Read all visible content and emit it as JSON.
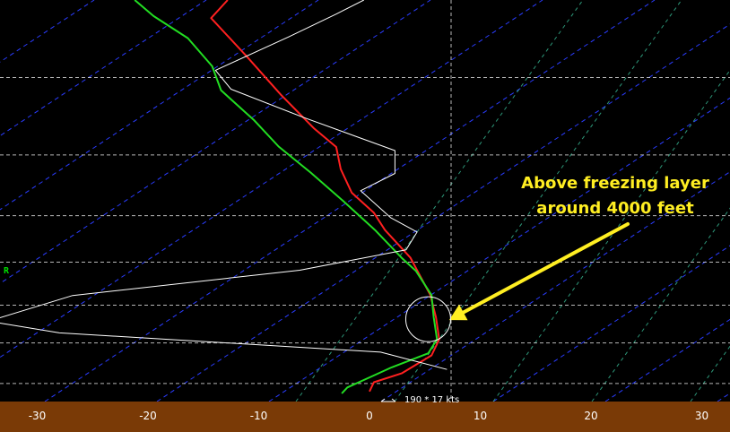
{
  "chart_data": {
    "type": "line",
    "title": "",
    "xlabel": "",
    "ylabel": "",
    "xlim": [
      -34.5,
      32.5
    ],
    "x_ticks": [
      -30,
      -20,
      -10,
      0,
      10,
      20,
      30
    ],
    "x_tick_labels": [
      "-30",
      "-20",
      "-10",
      "0",
      "10",
      "20",
      "30"
    ],
    "grid": true,
    "level_marker": "R",
    "series": [
      {
        "color": "#ff2020",
        "points": [
          [
            -12.8,
            1.0
          ],
          [
            -14.3,
            0.955
          ],
          [
            -11.1,
            0.86
          ],
          [
            -8.0,
            0.764
          ],
          [
            -5.0,
            0.68
          ],
          [
            -3.0,
            0.634
          ],
          [
            -2.6,
            0.579
          ],
          [
            -1.6,
            0.52
          ],
          [
            0.4,
            0.47
          ],
          [
            1.4,
            0.427
          ],
          [
            3.7,
            0.358
          ],
          [
            5.5,
            0.265
          ],
          [
            6.0,
            0.21
          ],
          [
            6.3,
            0.155
          ],
          [
            5.6,
            0.115
          ],
          [
            2.9,
            0.07
          ],
          [
            0.4,
            0.048
          ],
          [
            0.0,
            0.025
          ]
        ]
      },
      {
        "color": "#22dd22",
        "points": [
          [
            -21.2,
            1.0
          ],
          [
            -19.5,
            0.96
          ],
          [
            -16.4,
            0.905
          ],
          [
            -14.2,
            0.835
          ],
          [
            -13.4,
            0.775
          ],
          [
            -10.4,
            0.7
          ],
          [
            -8.2,
            0.635
          ],
          [
            -5.3,
            0.57
          ],
          [
            -2.4,
            0.5
          ],
          [
            0.5,
            0.427
          ],
          [
            2.9,
            0.358
          ],
          [
            4.2,
            0.325
          ],
          [
            5.6,
            0.265
          ],
          [
            5.8,
            0.21
          ],
          [
            6.1,
            0.155
          ],
          [
            5.3,
            0.12
          ],
          [
            2.0,
            0.085
          ],
          [
            0.0,
            0.06
          ],
          [
            -2.0,
            0.035
          ],
          [
            -2.5,
            0.02
          ]
        ]
      },
      {
        "color": "#ffffff",
        "points": [
          [
            -0.5,
            1.0
          ],
          [
            -3.0,
            0.965
          ],
          [
            -7.3,
            0.908
          ],
          [
            -13.9,
            0.825
          ],
          [
            -12.5,
            0.778
          ],
          [
            -6.0,
            0.708
          ],
          [
            2.3,
            0.625
          ],
          [
            2.3,
            0.568
          ],
          [
            -0.8,
            0.525
          ],
          [
            1.9,
            0.458
          ],
          [
            4.3,
            0.422
          ],
          [
            3.3,
            0.378
          ],
          [
            -6.3,
            0.327
          ],
          [
            -26.8,
            0.264
          ],
          [
            -34.4,
            0.2
          ],
          [
            -28.0,
            0.171
          ],
          [
            1.0,
            0.123
          ],
          [
            7.0,
            0.08
          ]
        ]
      }
    ],
    "wind_label": "190 * 17 kts",
    "annotations": [
      {
        "lines": [
          "Above freezing layer",
          "around 4000 feet"
        ],
        "arrow_to": [
          7.2,
          0.203
        ],
        "circle_at": [
          5.3,
          0.205
        ]
      }
    ]
  },
  "colors": {
    "background": "#000000",
    "axis_bar": "#7a3a06",
    "grid_horizontal": "#d8d8d8",
    "isotherm": "#2a3cff",
    "dry_adiabat": "#3cc8a0",
    "annotation": "#ffee22"
  }
}
